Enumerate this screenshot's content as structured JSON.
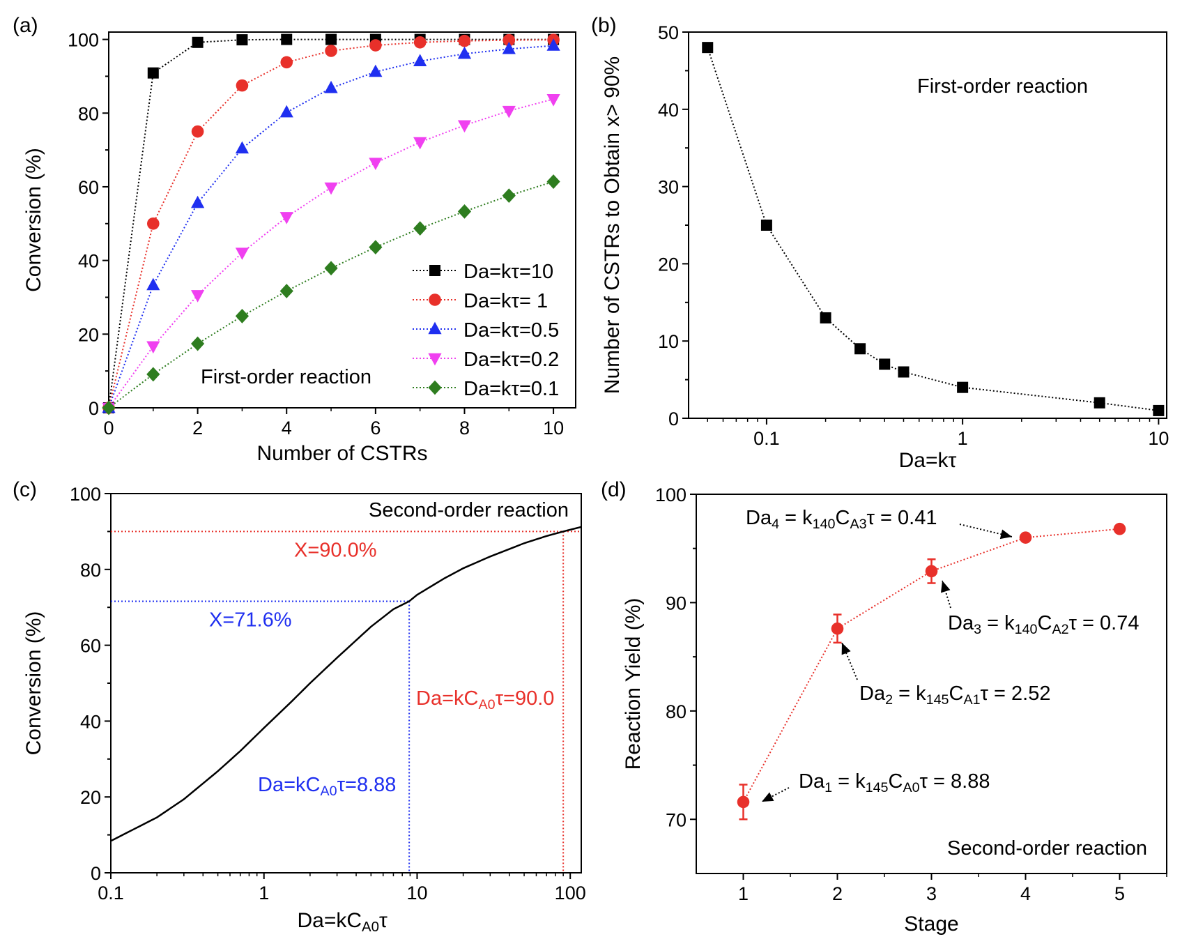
{
  "chart_data": [
    {
      "panel_label": "(a)",
      "type": "line",
      "xlabel": "Number of CSTRs",
      "ylabel": "Conversion (%)",
      "xlim": [
        0,
        10.5
      ],
      "ylim": [
        0,
        102
      ],
      "xticks": [
        0,
        2,
        4,
        6,
        8,
        10
      ],
      "yticks": [
        0,
        20,
        40,
        60,
        80,
        100
      ],
      "annotation": "First-order reaction",
      "legend_position": "bottom-right",
      "x": [
        0,
        1,
        2,
        3,
        4,
        5,
        6,
        7,
        8,
        9,
        10
      ],
      "series": [
        {
          "name": "Da=kτ=10",
          "color": "#000000",
          "marker": "square",
          "values": [
            0,
            90.9,
            99.2,
            99.9,
            100,
            100,
            100,
            100,
            100,
            100,
            100
          ]
        },
        {
          "name": "Da=kτ= 1",
          "color": "#e8302a",
          "marker": "circle",
          "values": [
            0,
            50,
            75,
            87.5,
            93.8,
            96.9,
            98.4,
            99.2,
            99.6,
            99.8,
            99.9
          ]
        },
        {
          "name": "Da=kτ=0.5",
          "color": "#1f2ff0",
          "marker": "triangle-up",
          "values": [
            0,
            33.3,
            55.6,
            70.4,
            80.2,
            86.8,
            91.2,
            94.1,
            96.1,
            97.4,
            98.3
          ]
        },
        {
          "name": "Da=kτ=0.2",
          "color": "#f040f0",
          "marker": "triangle-down",
          "values": [
            0,
            16.7,
            30.6,
            42.1,
            51.8,
            59.8,
            66.5,
            72.1,
            76.7,
            80.6,
            83.8
          ]
        },
        {
          "name": "Da=kτ=0.1",
          "color": "#2e7d1f",
          "marker": "diamond",
          "values": [
            0,
            9.1,
            17.4,
            24.9,
            31.7,
            37.9,
            43.6,
            48.7,
            53.3,
            57.6,
            61.4
          ]
        }
      ]
    },
    {
      "panel_label": "(b)",
      "type": "line",
      "xscale": "log",
      "xlabel": "Da=kτ",
      "ylabel": "Number of CSTRs to Obtain x> 90%",
      "xlim": [
        0.04,
        11
      ],
      "ylim": [
        0,
        50
      ],
      "xticks": [
        0.1,
        1,
        10
      ],
      "xticklabels": [
        "0.1",
        "1",
        "10"
      ],
      "yticks": [
        0,
        10,
        20,
        30,
        40,
        50
      ],
      "annotation": "First-order reaction",
      "series": [
        {
          "color": "#000000",
          "marker": "square",
          "x": [
            0.05,
            0.1,
            0.2,
            0.3,
            0.4,
            0.5,
            1,
            5,
            10
          ],
          "values": [
            48,
            25,
            13,
            9,
            7,
            6,
            4,
            2,
            1
          ]
        }
      ]
    },
    {
      "panel_label": "(c)",
      "type": "line",
      "xscale": "log",
      "xlabel": {
        "main": "Da=kC",
        "sub": "A0",
        "tail": "τ"
      },
      "ylabel": "Conversion (%)",
      "xlim": [
        0.1,
        118
      ],
      "ylim": [
        0,
        100
      ],
      "xticks": [
        0.1,
        1,
        10,
        100
      ],
      "xticklabels": [
        "0.1",
        "1",
        "10",
        "100"
      ],
      "yticks": [
        0,
        20,
        40,
        60,
        80,
        100
      ],
      "annotation": "Second-order reaction",
      "series": [
        {
          "color": "#000000",
          "x": [
            0.1,
            0.2,
            0.3,
            0.5,
            0.7,
            1,
            1.5,
            2,
            3,
            5,
            7,
            8.88,
            10,
            15,
            20,
            30,
            50,
            70,
            90,
            118
          ],
          "values": [
            8.4,
            14.6,
            19.4,
            26.8,
            32.1,
            38.2,
            45.0,
            50.0,
            56.7,
            64.9,
            69.5,
            71.6,
            73.3,
            77.6,
            80.3,
            83.4,
            86.9,
            88.8,
            90.0,
            91.2
          ]
        }
      ],
      "reference_lines": [
        {
          "label": "X=90.0%",
          "y": 90.0,
          "x": 90.0,
          "color": "#e8302a",
          "xlabel": {
            "main": "Da=kC",
            "sub": "A0",
            "tail": "τ=90.0"
          }
        },
        {
          "label": "X=71.6%",
          "y": 71.6,
          "x": 8.88,
          "color": "#1f2ff0",
          "xlabel": {
            "main": "Da=kC",
            "sub": "A0",
            "tail": "τ=8.88"
          }
        }
      ]
    },
    {
      "panel_label": "(d)",
      "type": "line",
      "xlabel": "Stage",
      "ylabel": "Reaction Yield (%)",
      "xlim": [
        0.5,
        5.5
      ],
      "ylim": [
        65,
        100
      ],
      "xticks": [
        1,
        2,
        3,
        4,
        5
      ],
      "yticks": [
        70,
        80,
        90,
        100
      ],
      "annotation": "Second-order reaction",
      "series": [
        {
          "color": "#e8302a",
          "marker": "circle",
          "x": [
            1,
            2,
            3,
            4,
            5
          ],
          "values": [
            71.6,
            87.6,
            92.9,
            96.0,
            96.8
          ],
          "errors": [
            1.6,
            1.3,
            1.1,
            0,
            0
          ]
        }
      ],
      "labels": [
        {
          "point": 1,
          "segments": [
            [
              "Da",
              ""
            ],
            [
              "1",
              "sub"
            ],
            [
              " = k",
              ""
            ],
            [
              "145",
              "sub"
            ],
            [
              "C",
              ""
            ],
            [
              "A0",
              "sub"
            ],
            [
              "τ = 8.88",
              ""
            ]
          ]
        },
        {
          "point": 2,
          "segments": [
            [
              "Da",
              ""
            ],
            [
              "2",
              "sub"
            ],
            [
              " = k",
              ""
            ],
            [
              "145",
              "sub"
            ],
            [
              "C",
              ""
            ],
            [
              "A1",
              "sub"
            ],
            [
              "τ = 2.52",
              ""
            ]
          ]
        },
        {
          "point": 3,
          "segments": [
            [
              "Da",
              ""
            ],
            [
              "3",
              "sub"
            ],
            [
              " = k",
              ""
            ],
            [
              "140",
              "sub"
            ],
            [
              "C",
              ""
            ],
            [
              "A2",
              "sub"
            ],
            [
              "τ = 0.74",
              ""
            ]
          ]
        },
        {
          "point": 4,
          "segments": [
            [
              "Da",
              ""
            ],
            [
              "4",
              "sub"
            ],
            [
              " = k",
              ""
            ],
            [
              "140",
              "sub"
            ],
            [
              "C",
              ""
            ],
            [
              "A3",
              "sub"
            ],
            [
              "τ = 0.41",
              ""
            ]
          ]
        }
      ]
    }
  ]
}
